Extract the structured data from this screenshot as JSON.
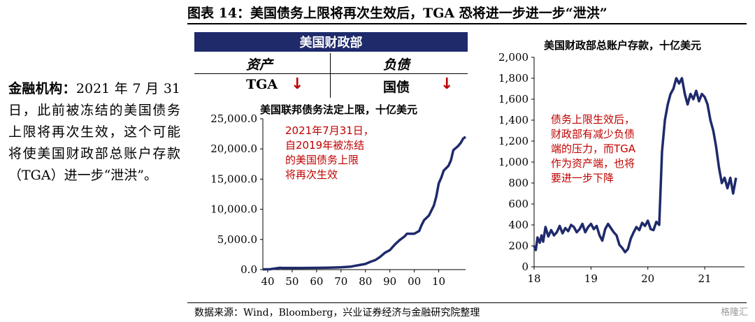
{
  "figure_title": "图表 14：美国债务上限将再次生效后，TGA 恐将进一步进一步“泄洪”",
  "side_text": {
    "lead": "金融机构：",
    "body": "2021 年 7 月 31 日，此前被冻结的美国债务上限将再次生效，这个可能将使美国财政部总账户存款（TGA）进一步“泄洪”。"
  },
  "balance_sheet": {
    "header": "美国财政部",
    "assets_label": "资产",
    "liabilities_label": "负债",
    "asset_item": "TGA",
    "liability_item": "国债",
    "arrow_glyph": "↓",
    "arrow_color": "#c00000",
    "header_color": "#1f2a6b"
  },
  "source": "数据来源：Wind，Bloomberg，兴业证券经济与金融研究院整理",
  "watermark": "格隆汇",
  "line_color": "#1f2a6b",
  "chart_data": [
    {
      "type": "line",
      "title": "美国联邦债务法定上限，十亿美元",
      "xlabel": "",
      "ylabel": "",
      "x_ticks": [
        40,
        50,
        60,
        70,
        80,
        90,
        0,
        10
      ],
      "x_tick_labels": [
        "40",
        "50",
        "60",
        "70",
        "80",
        "90",
        "00",
        "10"
      ],
      "xlim": [
        1938,
        2021
      ],
      "y_ticks": [
        0,
        5000,
        10000,
        15000,
        20000,
        25000
      ],
      "y_tick_labels": [
        "0.0",
        "5,000.0",
        "10,000.0",
        "15,000.0",
        "20,000.0",
        "25,000.0"
      ],
      "ylim": [
        0,
        25000
      ],
      "grid": false,
      "annotation": [
        "2021年7月31日，",
        "自2019年被冻结",
        "的美国债务上限",
        "将再次生效"
      ],
      "series": [
        {
          "x": [
            1938,
            1941,
            1945,
            1946,
            1954,
            1958,
            1962,
            1966,
            1970,
            1974,
            1978,
            1980,
            1982,
            1984,
            1986,
            1988,
            1990,
            1992,
            1994,
            1996,
            1997,
            2000,
            2002,
            2003,
            2004,
            2006,
            2008,
            2009,
            2010,
            2011,
            2012,
            2014,
            2015,
            2016,
            2018,
            2019,
            2020,
            2021
          ],
          "y": [
            45,
            65,
            300,
            275,
            281,
            288,
            300,
            330,
            395,
            495,
            800,
            935,
            1290,
            1573,
            2111,
            2800,
            3230,
            4145,
            4900,
            5500,
            5950,
            5950,
            6400,
            7384,
            8184,
            8965,
            10615,
            12104,
            14294,
            15194,
            16394,
            17200,
            18100,
            19800,
            20500,
            21000,
            21700,
            22000
          ]
        }
      ]
    },
    {
      "type": "line",
      "title": "美国财政部总账户存款，十亿美元",
      "xlabel": "",
      "ylabel": "",
      "x_ticks": [
        2018,
        2019,
        2020,
        2021
      ],
      "x_tick_labels": [
        "18",
        "19",
        "20",
        "21"
      ],
      "xlim": [
        2018,
        2021.7
      ],
      "y_ticks": [
        0,
        200,
        400,
        600,
        800,
        1000,
        1200,
        1400,
        1600,
        1800,
        2000
      ],
      "y_tick_labels": [
        "0",
        "200",
        "400",
        "600",
        "800",
        "1,000",
        "1,200",
        "1,400",
        "1,600",
        "1,800",
        "2,000"
      ],
      "ylim": [
        0,
        2000
      ],
      "grid": false,
      "annotation": [
        "债务上限生效后，",
        "财政部有减少负债",
        "端的压力，而TGA",
        "作为资产端，也将",
        "要进一步下降"
      ],
      "series": [
        {
          "x": [
            2018.0,
            2018.03,
            2018.06,
            2018.1,
            2018.13,
            2018.16,
            2018.2,
            2018.25,
            2018.3,
            2018.35,
            2018.4,
            2018.45,
            2018.5,
            2018.55,
            2018.6,
            2018.65,
            2018.7,
            2018.75,
            2018.8,
            2018.85,
            2018.9,
            2018.95,
            2019.0,
            2019.05,
            2019.1,
            2019.15,
            2019.2,
            2019.25,
            2019.3,
            2019.35,
            2019.4,
            2019.45,
            2019.5,
            2019.55,
            2019.6,
            2019.65,
            2019.7,
            2019.75,
            2019.8,
            2019.85,
            2019.9,
            2019.95,
            2020.0,
            2020.05,
            2020.1,
            2020.15,
            2020.2,
            2020.25,
            2020.3,
            2020.35,
            2020.4,
            2020.45,
            2020.5,
            2020.55,
            2020.6,
            2020.65,
            2020.7,
            2020.75,
            2020.8,
            2020.85,
            2020.9,
            2020.95,
            2021.0,
            2021.05,
            2021.1,
            2021.15,
            2021.2,
            2021.25,
            2021.3,
            2021.35,
            2021.4,
            2021.45,
            2021.5,
            2021.55
          ],
          "y": [
            200,
            160,
            280,
            230,
            300,
            240,
            380,
            290,
            350,
            300,
            330,
            390,
            320,
            370,
            340,
            400,
            380,
            330,
            360,
            410,
            330,
            380,
            410,
            360,
            390,
            300,
            250,
            360,
            410,
            370,
            330,
            300,
            210,
            180,
            140,
            170,
            270,
            330,
            380,
            350,
            420,
            390,
            440,
            360,
            350,
            430,
            400,
            1100,
            1400,
            1550,
            1650,
            1700,
            1800,
            1750,
            1800,
            1650,
            1550,
            1650,
            1600,
            1680,
            1580,
            1650,
            1620,
            1550,
            1400,
            1300,
            1150,
            950,
            800,
            850,
            750,
            850,
            700,
            850
          ]
        }
      ]
    }
  ]
}
